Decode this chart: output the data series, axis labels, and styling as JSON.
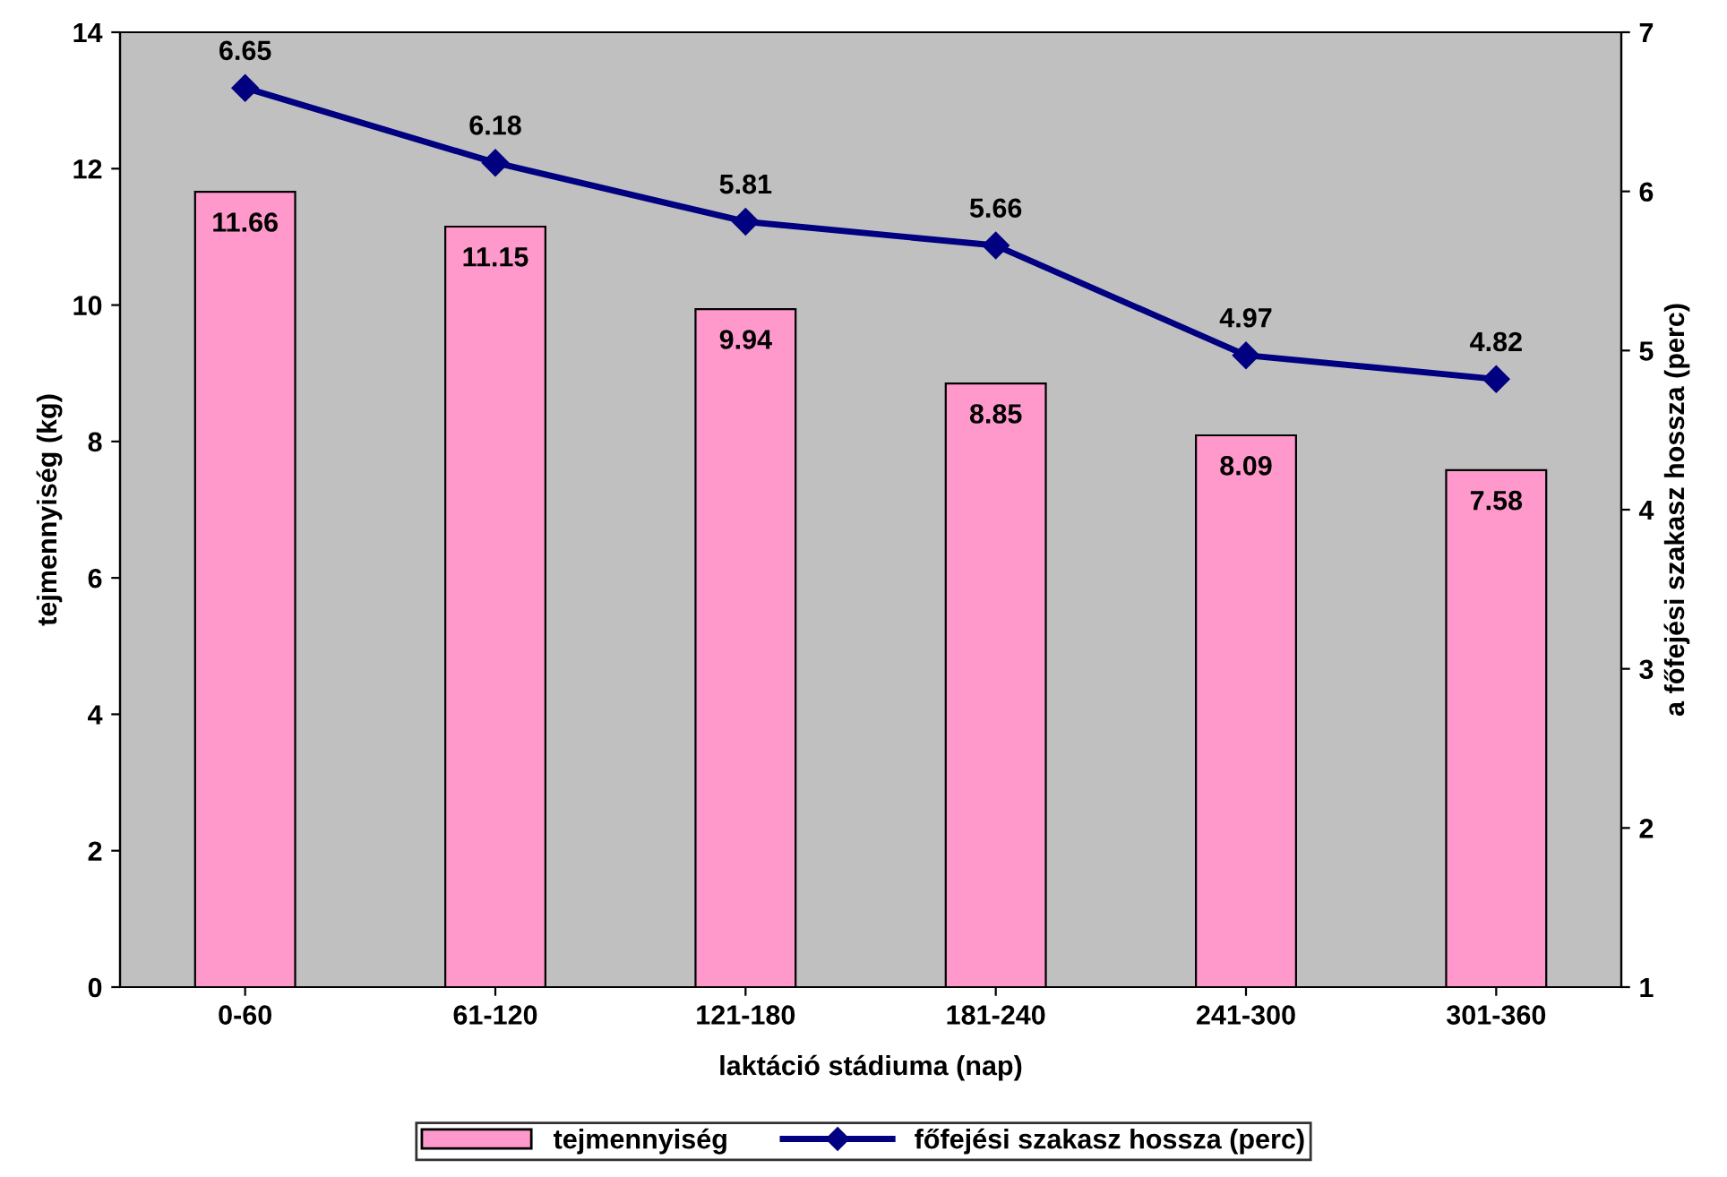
{
  "chart_data": {
    "type": "bar",
    "xlabel": "laktáció stádiuma (nap)",
    "ylabel": "tejmennyiség (kg)",
    "y2label": "a főfejési szakasz hossza (perc)",
    "categories": [
      "0-60",
      "61-120",
      "121-180",
      "181-240",
      "241-300",
      "301-360"
    ],
    "series": [
      {
        "name": "tejmennyiség",
        "color": "#ff99cc",
        "values": [
          11.66,
          11.15,
          9.94,
          8.85,
          8.09,
          7.58
        ]
      },
      {
        "name": "főfejési szakasz hossza (perc)",
        "type": "line",
        "axis": "y2",
        "color": "#000080",
        "marker": "diamond",
        "values": [
          6.65,
          6.18,
          5.81,
          5.66,
          4.97,
          4.82
        ]
      }
    ],
    "ylim": [
      0,
      14
    ],
    "yticks": [
      0,
      2,
      4,
      6,
      8,
      10,
      12,
      14
    ],
    "y2lim": [
      1,
      7
    ],
    "y2ticks": [
      1,
      2,
      3,
      4,
      5,
      6,
      7
    ],
    "data_labels": true,
    "grid": false,
    "legend": "bottom"
  }
}
